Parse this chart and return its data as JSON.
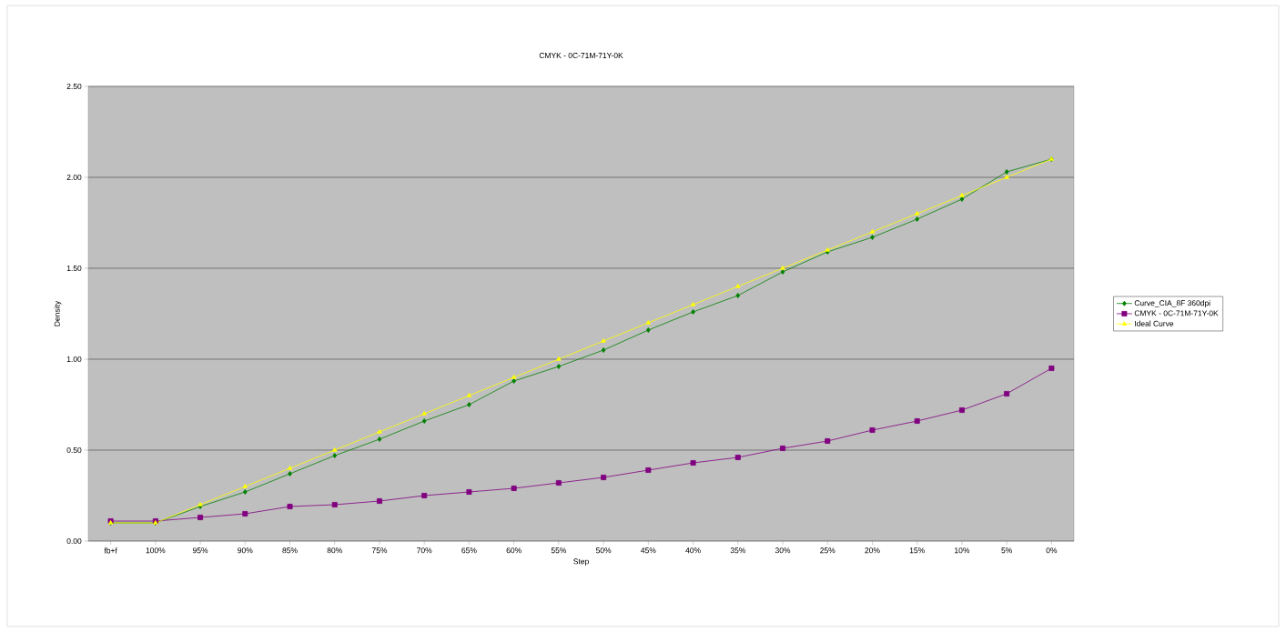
{
  "chart_data": {
    "type": "line",
    "title": "CMYK - 0C-71M-71Y-0K",
    "xlabel": "Step",
    "ylabel": "Density",
    "categories": [
      "fb+f",
      "100%",
      "95%",
      "90%",
      "85%",
      "80%",
      "75%",
      "70%",
      "65%",
      "60%",
      "55%",
      "50%",
      "45%",
      "40%",
      "35%",
      "30%",
      "25%",
      "20%",
      "15%",
      "10%",
      "5%",
      "0%"
    ],
    "series": [
      {
        "name": "Curve_CIA_8F 360dpi",
        "color": "#008000",
        "marker": "diamond",
        "values": [
          0.1,
          0.1,
          0.19,
          0.27,
          0.37,
          0.47,
          0.56,
          0.66,
          0.75,
          0.88,
          0.96,
          1.05,
          1.16,
          1.26,
          1.35,
          1.48,
          1.59,
          1.67,
          1.77,
          1.88,
          2.03,
          2.1
        ]
      },
      {
        "name": "CMYK - 0C-71M-71Y-0K",
        "color": "#800080",
        "marker": "square",
        "values": [
          0.11,
          0.11,
          0.13,
          0.15,
          0.19,
          0.2,
          0.22,
          0.25,
          0.27,
          0.29,
          0.32,
          0.35,
          0.39,
          0.43,
          0.46,
          0.51,
          0.55,
          0.61,
          0.66,
          0.72,
          0.81,
          0.95
        ]
      },
      {
        "name": "Ideal Curve",
        "color": "#ffff00",
        "marker": "triangle",
        "values": [
          0.1,
          0.1,
          0.2,
          0.3,
          0.4,
          0.5,
          0.6,
          0.7,
          0.8,
          0.9,
          1.0,
          1.1,
          1.2,
          1.3,
          1.4,
          1.5,
          1.6,
          1.7,
          1.8,
          1.9,
          2.0,
          2.1
        ]
      }
    ],
    "ylim": [
      0,
      2.5
    ],
    "yticks": [
      {
        "value": 0,
        "label": "0.00"
      },
      {
        "value": 0.5,
        "label": "0.50"
      },
      {
        "value": 1,
        "label": "1.00"
      },
      {
        "value": 1.5,
        "label": "1.50"
      },
      {
        "value": 2,
        "label": "2.00"
      },
      {
        "value": 2.5,
        "label": "2.50"
      }
    ],
    "grid": "y",
    "legend": "right"
  }
}
